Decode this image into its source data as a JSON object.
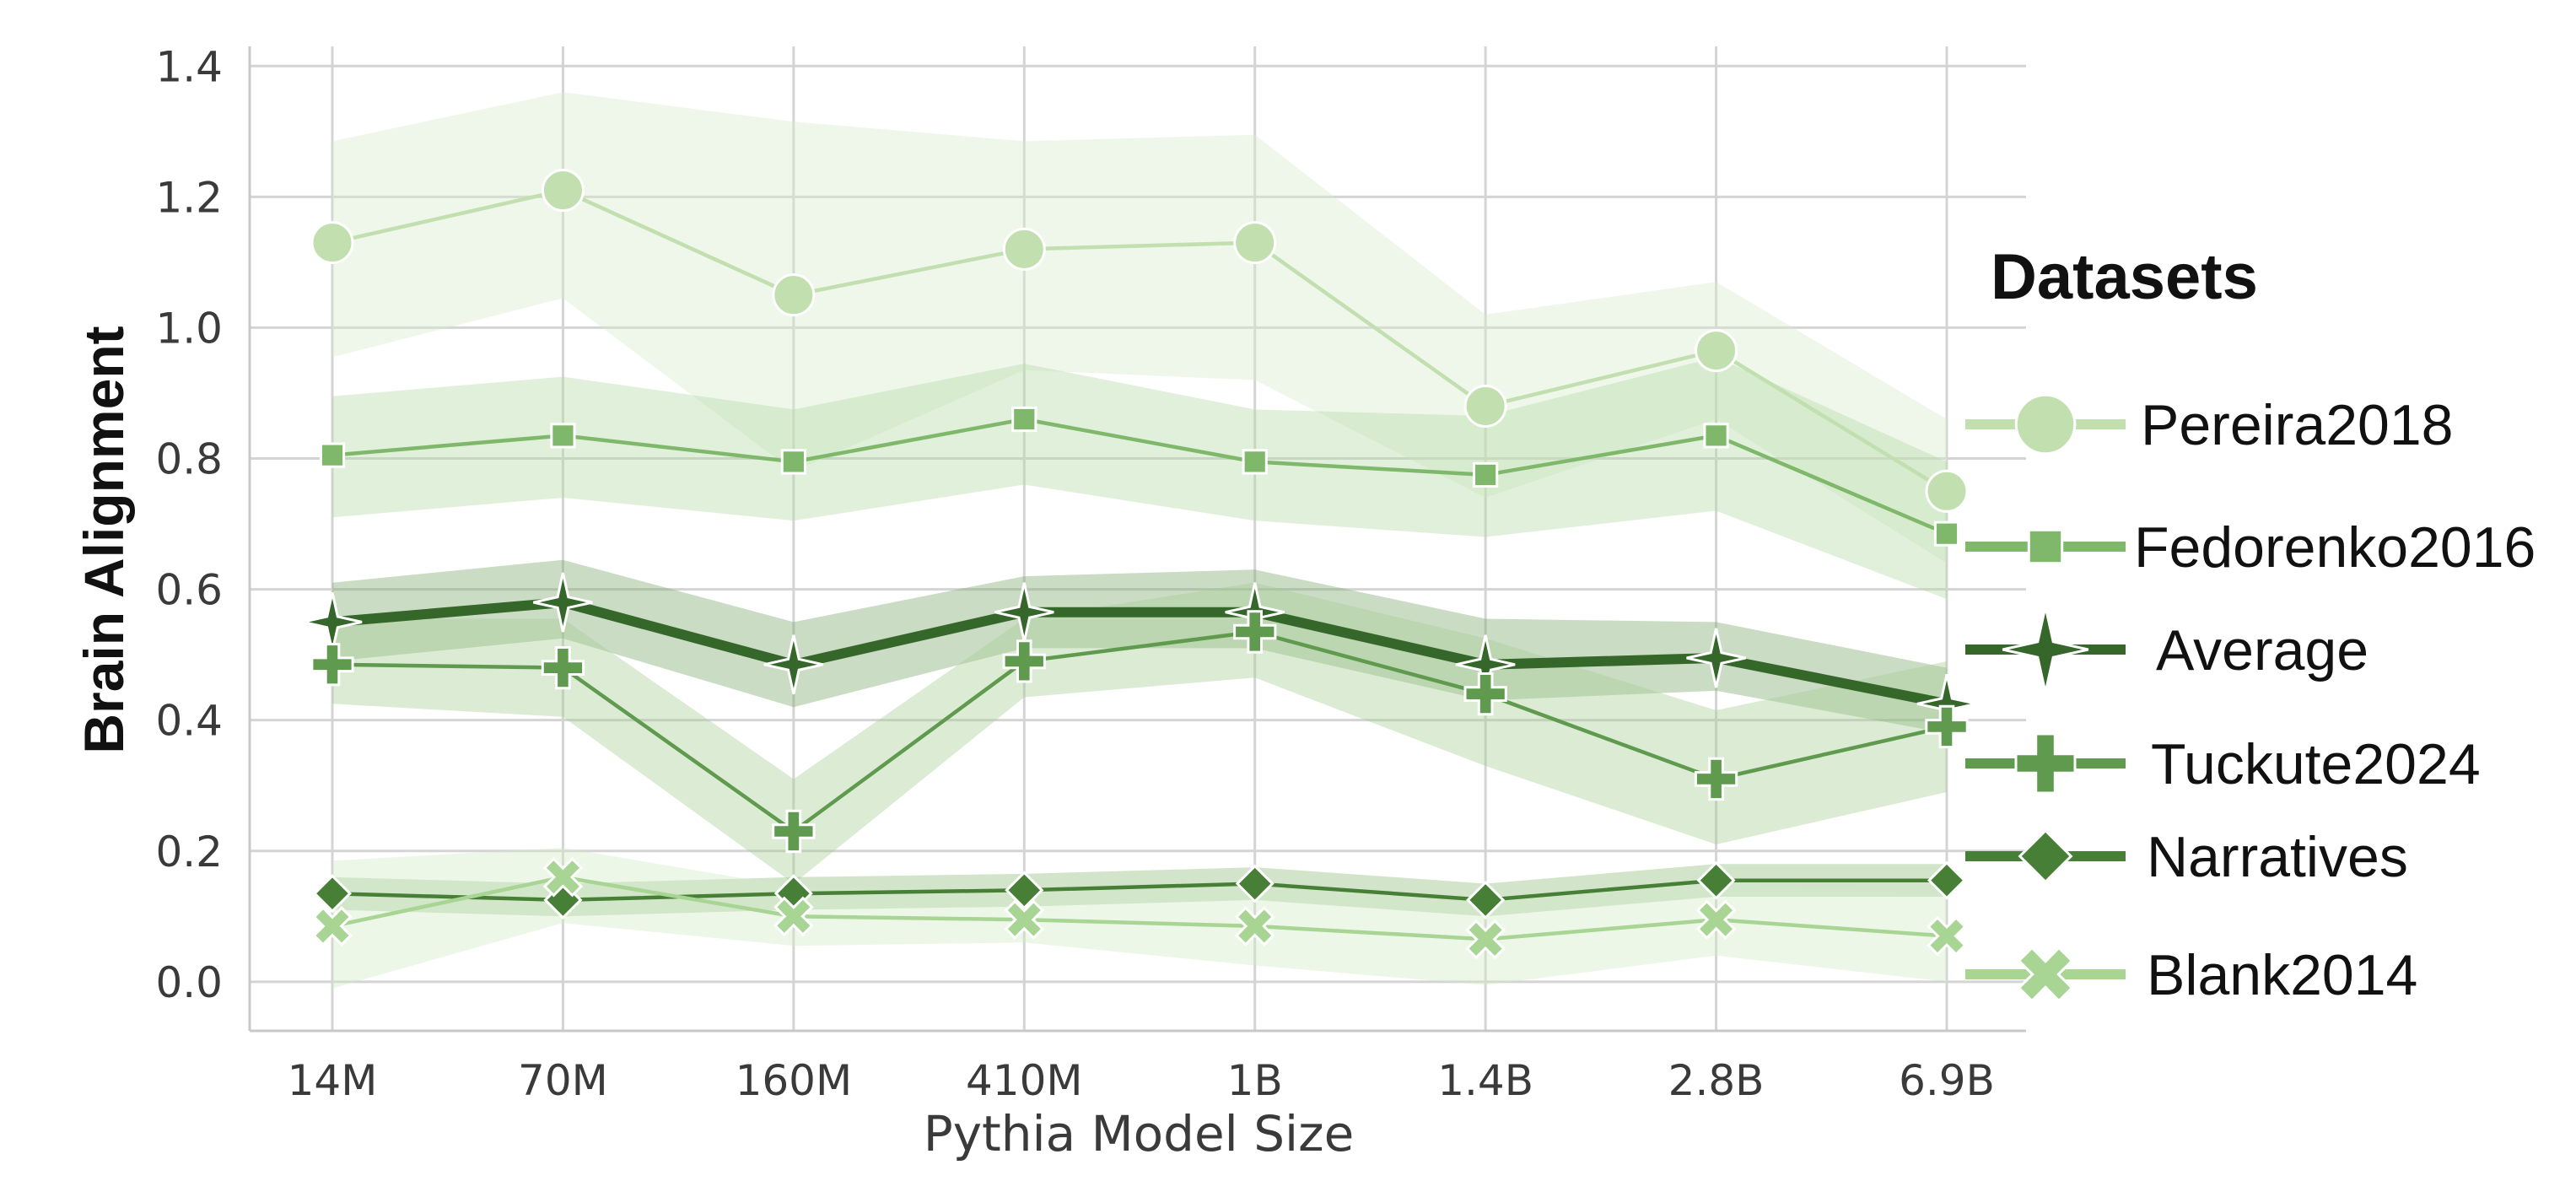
{
  "chart_data": {
    "type": "line",
    "xlabel": "Pythia Model Size",
    "ylabel": "Brain Alignment",
    "categories": [
      "14M",
      "70M",
      "160M",
      "410M",
      "1B",
      "1.4B",
      "2.8B",
      "6.9B"
    ],
    "ylim": [
      -0.075,
      1.43
    ],
    "yticks": [
      0.0,
      0.2,
      0.4,
      0.6,
      0.8,
      1.0,
      1.2,
      1.4
    ],
    "ytick_labels": [
      "0.0",
      "0.2",
      "0.4",
      "0.6",
      "0.8",
      "1.0",
      "1.2",
      "1.4"
    ],
    "grid": true,
    "legend": {
      "title": "Datasets",
      "placement": "right"
    },
    "series": [
      {
        "name": "Pereira2018",
        "marker": "circle",
        "color": "#c2dfb0",
        "band_color": "#d7ebcc",
        "values": [
          1.13,
          1.21,
          1.05,
          1.12,
          1.13,
          0.88,
          0.965,
          0.75
        ],
        "lower": [
          0.955,
          1.045,
          0.78,
          0.935,
          0.92,
          0.74,
          0.86,
          0.64
        ],
        "upper": [
          1.285,
          1.36,
          1.315,
          1.285,
          1.295,
          1.02,
          1.07,
          0.86
        ]
      },
      {
        "name": "Fedorenko2016",
        "marker": "square",
        "color": "#7fb86b",
        "band_color": "#b4d9a4",
        "values": [
          0.805,
          0.835,
          0.795,
          0.86,
          0.795,
          0.775,
          0.835,
          0.685
        ],
        "lower": [
          0.71,
          0.74,
          0.705,
          0.76,
          0.705,
          0.68,
          0.72,
          0.585
        ],
        "upper": [
          0.895,
          0.925,
          0.875,
          0.945,
          0.875,
          0.865,
          0.955,
          0.795
        ]
      },
      {
        "name": "Average",
        "marker": "star4",
        "color": "#35662a",
        "band_color": "#7aa86c",
        "values": [
          0.55,
          0.58,
          0.485,
          0.565,
          0.565,
          0.485,
          0.495,
          0.425
        ],
        "lower": [
          0.49,
          0.525,
          0.42,
          0.51,
          0.51,
          0.43,
          0.445,
          0.38
        ],
        "upper": [
          0.61,
          0.645,
          0.55,
          0.62,
          0.63,
          0.555,
          0.55,
          0.48
        ]
      },
      {
        "name": "Tuckute2024",
        "marker": "plus",
        "color": "#5f9a4e",
        "band_color": "#a4cd93",
        "values": [
          0.485,
          0.48,
          0.23,
          0.49,
          0.535,
          0.44,
          0.31,
          0.39
        ],
        "lower": [
          0.425,
          0.405,
          0.15,
          0.435,
          0.465,
          0.33,
          0.21,
          0.29
        ],
        "upper": [
          0.555,
          0.555,
          0.31,
          0.555,
          0.61,
          0.525,
          0.415,
          0.49
        ]
      },
      {
        "name": "Narratives",
        "marker": "diamond",
        "color": "#477f37",
        "band_color": "#8fbd7e",
        "values": [
          0.135,
          0.125,
          0.135,
          0.14,
          0.15,
          0.125,
          0.155,
          0.155
        ],
        "lower": [
          0.11,
          0.1,
          0.11,
          0.115,
          0.125,
          0.1,
          0.13,
          0.13
        ],
        "upper": [
          0.16,
          0.15,
          0.16,
          0.165,
          0.175,
          0.15,
          0.18,
          0.18
        ]
      },
      {
        "name": "Blank2014",
        "marker": "x",
        "color": "#a8d494",
        "band_color": "#d2eac5",
        "values": [
          0.085,
          0.16,
          0.1,
          0.095,
          0.085,
          0.065,
          0.095,
          0.07
        ],
        "lower": [
          -0.01,
          0.09,
          0.055,
          0.06,
          0.025,
          -0.005,
          0.04,
          0.0
        ],
        "upper": [
          0.185,
          0.205,
          0.145,
          0.14,
          0.145,
          0.13,
          0.15,
          0.135
        ]
      }
    ]
  }
}
